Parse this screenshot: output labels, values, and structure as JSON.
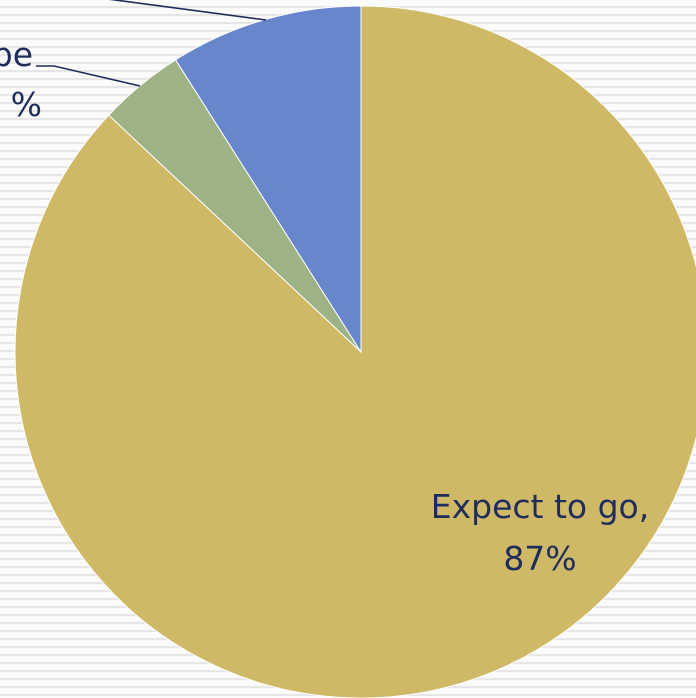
{
  "chart_data": {
    "type": "pie",
    "slices": [
      {
        "label": "Expect to go",
        "value": 87,
        "value_label": "87%",
        "color": "#cfb966"
      },
      {
        "label": "",
        "value": 4,
        "value_label": "%",
        "color": "#9db386",
        "label_fragment": "pe"
      },
      {
        "label": "",
        "value": 9,
        "value_label": "",
        "color": "#6786cc"
      }
    ],
    "title": "",
    "legend": "none"
  }
}
